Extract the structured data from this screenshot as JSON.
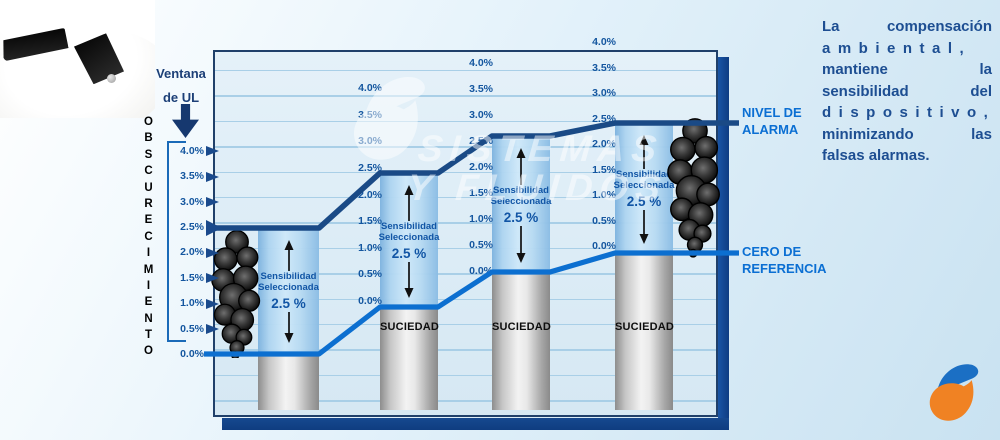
{
  "colors": {
    "alarm_line": "#1a4a86",
    "zero_line": "#0c6fd0",
    "tick_text": "#14569f",
    "bar_text": "#1155a5",
    "side_label": "#0b6fd3",
    "paragraph_text": "#1d4e92",
    "navy_dark": "#16386f",
    "logo_orange": "#f08223",
    "logo_blue": "#1b6fc4"
  },
  "icons": {
    "detector": "smoke-detector-photo",
    "smoke": "smoke-cloud",
    "logo": "flame-swoosh-logo",
    "watermark_logo": "flame-swoosh-logo-white"
  },
  "axis": {
    "vertical_title": "OBSCURECIMIENTO",
    "window_label_line1": "Ventana",
    "window_label_line2": "de UL",
    "tick_labels": [
      "4.0%",
      "3.5%",
      "3.0%",
      "2.5%",
      "2.0%",
      "1.5%",
      "1.0%",
      "0.5%",
      "0.0%"
    ]
  },
  "bars": [
    {
      "sensitivity_line1": "Sensibilidad",
      "sensitivity_line2": "Seleccionada",
      "sensitivity_value": "2.5 %",
      "dirt_label": ""
    },
    {
      "sensitivity_line1": "Sensibilidad",
      "sensitivity_line2": "Seleccionada",
      "sensitivity_value": "2.5 %",
      "dirt_label": "SUCIEDAD"
    },
    {
      "sensitivity_line1": "Sensibilidad",
      "sensitivity_line2": "Seleccionada",
      "sensitivity_value": "2.5 %",
      "dirt_label": "SUCIEDAD"
    },
    {
      "sensitivity_line1": "Sensibilidad",
      "sensitivity_line2": "Seleccionada",
      "sensitivity_value": "2.5 %",
      "dirt_label": "SUCIEDAD"
    }
  ],
  "lines": {
    "alarm_label_line1": "NIVEL DE",
    "alarm_label_line2": "ALARMA",
    "zero_label_line1": "CERO DE",
    "zero_label_line2": "REFERENCIA"
  },
  "watermark": {
    "line1": "SISTEMAS",
    "line2": "Y FLUIDOS"
  },
  "paragraph": {
    "lines": [
      {
        "words": [
          "La",
          "compensación"
        ],
        "style": "justify"
      },
      {
        "words": [
          "ambiental,"
        ],
        "style": "spread"
      },
      {
        "words": [
          "mantiene",
          "la"
        ],
        "style": "justify"
      },
      {
        "words": [
          "sensibilidad",
          "del"
        ],
        "style": "justify"
      },
      {
        "words": [
          "dispositivo,"
        ],
        "style": "spread"
      },
      {
        "words": [
          "minimizando",
          "las"
        ],
        "style": "justify"
      },
      {
        "words": [
          "falsas",
          "alarmas."
        ],
        "style": "normal"
      }
    ]
  }
}
